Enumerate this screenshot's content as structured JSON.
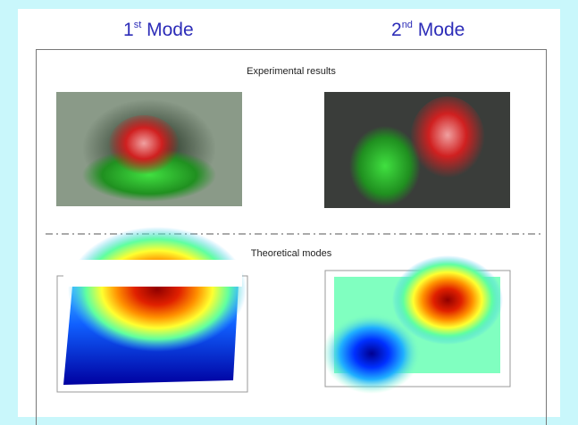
{
  "columns": [
    {
      "number": "1",
      "suffix": "st",
      "label": "Mode"
    },
    {
      "number": "2",
      "suffix": "nd",
      "label": "Mode"
    }
  ],
  "sections": {
    "experimental": "Experimental results",
    "theoretical": "Theoretical modes"
  }
}
